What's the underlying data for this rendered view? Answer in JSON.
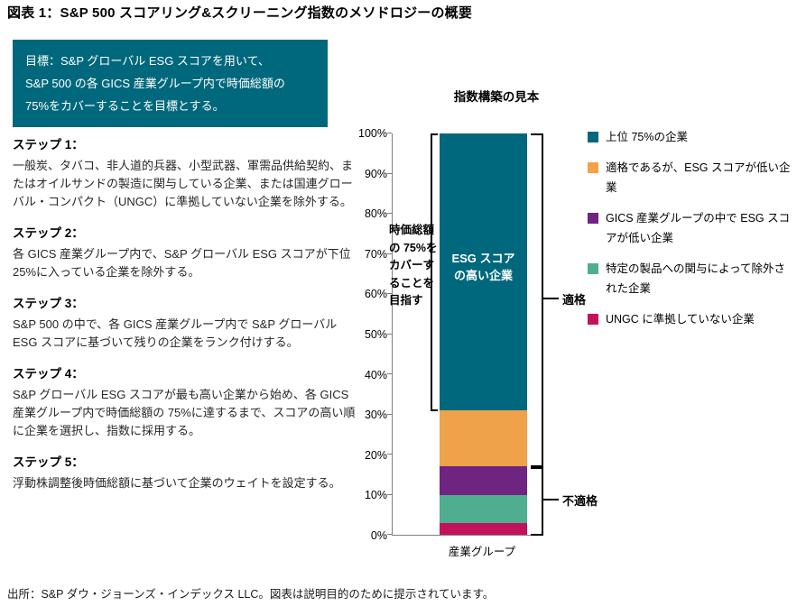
{
  "page": {
    "title": "図表 1：S&P 500 スコアリング&スクリーニング指数のメソドロジーの概要",
    "source_note": "出所：S&P ダウ・ジョーンズ・インデックス LLC。図表は説明目的のために提示されています。"
  },
  "goal_box": {
    "text": "目標：S&P グローバル ESG スコアを用いて、\nS&P 500 の各 GICS 産業グループ内で時価総額の\n75%をカバーすることを目標とする。",
    "background": "#00687C"
  },
  "steps": [
    {
      "label": "ステップ 1：",
      "text": "一般炭、タバコ、非人道的兵器、小型武器、軍需品供給契約、またはオイルサンドの製造に関与している企業、または国連グローバル・コンパクト（UNGC）に準拠していない企業を除外する。"
    },
    {
      "label": "ステップ 2：",
      "text": "各 GICS 産業グループ内で、S&P グローバル ESG スコアが下位 25%に入っている企業を除外する。"
    },
    {
      "label": "ステップ 3：",
      "text": "S&P 500 の中で、各 GICS 産業グループ内で S&P グローバル ESG スコアに基づいて残りの企業をランク付けする。"
    },
    {
      "label": "ステップ 4：",
      "text": "S&P グローバル ESG スコアが最も高い企業から始め、各 GICS 産業グループ内で時価総額の 75%に達するまで、スコアの高い順に企業を選択し、指数に採用する。"
    },
    {
      "label": "ステップ 5：",
      "text": "浮動株調整後時価総額に基づいて企業のウェイトを設定する。"
    }
  ],
  "chart": {
    "title": "指数構築の見本",
    "x_axis_label": "産業グループ",
    "bar_inner_label": "ESG スコア\nの高い企業",
    "left_annotation": "時価総額\nの 75%を\nカバーす\nることを\n目指す",
    "bracket_label_eligible": "適格",
    "bracket_label_ineligible": "不適格",
    "y_ticks": [
      "0%",
      "10%",
      "20%",
      "30%",
      "40%",
      "50%",
      "60%",
      "70%",
      "80%",
      "90%",
      "100%"
    ]
  },
  "chart_data": {
    "type": "bar",
    "stacked": true,
    "title": "指数構築の見本",
    "categories": [
      "産業グループ"
    ],
    "series": [
      {
        "name": "UNGC に準拠していない企業",
        "value": 3,
        "color": "#C2125C"
      },
      {
        "name": "特定の製品への関与によって除外された企業",
        "value": 7,
        "color": "#4FAE90"
      },
      {
        "name": "GICS 産業グループの中で ESG スコアが低い企業",
        "value": 7,
        "color": "#6F2482"
      },
      {
        "name": "適格であるが、ESG スコアが低い企業",
        "value": 14,
        "color": "#F0A24B"
      },
      {
        "name": "上位 75%の企業",
        "value": 69,
        "color": "#00687C"
      }
    ],
    "ylim": [
      0,
      100
    ],
    "y_tick_step": 10,
    "legend_position": "right",
    "grid": false,
    "annotations": [
      "時価総額の 75%をカバーすることを目指す",
      "適格",
      "不適格",
      "ESG スコアの高い企業"
    ]
  }
}
